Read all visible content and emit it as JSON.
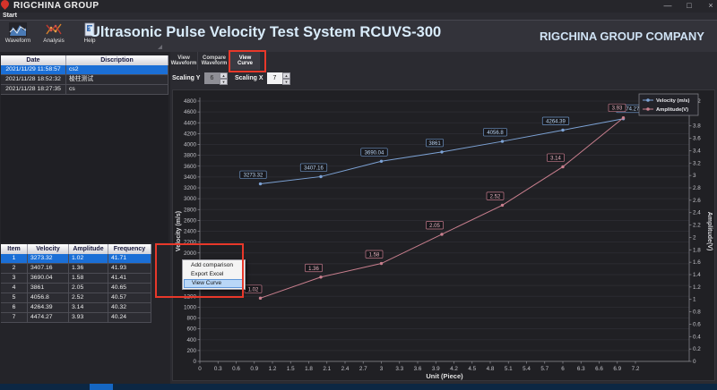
{
  "titlebar": {
    "app_title": "RIGCHINA GROUP",
    "controls": {
      "minimize": "—",
      "restore": "□",
      "close": "×"
    }
  },
  "menubar": {
    "start": "Start"
  },
  "toolbar": {
    "buttons": [
      {
        "label": "Waveform",
        "icon": "waveform-chart-icon"
      },
      {
        "label": "Analysis",
        "icon": "analysis-scatter-icon"
      },
      {
        "label": "Help",
        "icon": "help-question-icon"
      }
    ]
  },
  "header": {
    "main_title": "Ultrasonic Pulse Velocity Test System RCUVS-300",
    "company": "RIGCHINA GROUP COMPANY"
  },
  "history_table": {
    "headers": [
      "Date",
      "Discription"
    ],
    "rows": [
      {
        "date": "2021/11/29 11:58:57",
        "description": "cs2",
        "selected": true
      },
      {
        "date": "2021/11/28 18:52:32",
        "description": "棱柱测试",
        "selected": false
      },
      {
        "date": "2021/11/28 18:27:35",
        "description": "cs",
        "selected": false
      }
    ]
  },
  "results_table": {
    "headers": [
      "Item",
      "Velocity",
      "Amplitude",
      "Frequency"
    ],
    "rows": [
      {
        "item": "1",
        "velocity": "3273.32",
        "amplitude": "1.02",
        "frequency": "41.71",
        "selected": true
      },
      {
        "item": "2",
        "velocity": "3407.16",
        "amplitude": "1.36",
        "frequency": "41.93",
        "selected": false
      },
      {
        "item": "3",
        "velocity": "3690.04",
        "amplitude": "1.58",
        "frequency": "41.41",
        "selected": false
      },
      {
        "item": "4",
        "velocity": "3861",
        "amplitude": "2.05",
        "frequency": "40.65",
        "selected": false
      },
      {
        "item": "5",
        "velocity": "4056.8",
        "amplitude": "2.52",
        "frequency": "40.57",
        "selected": false
      },
      {
        "item": "6",
        "velocity": "4264.39",
        "amplitude": "3.14",
        "frequency": "40.32",
        "selected": false
      },
      {
        "item": "7",
        "velocity": "4474.27",
        "amplitude": "3.93",
        "frequency": "40.24",
        "selected": false
      }
    ]
  },
  "tabs": [
    {
      "label": "View Waveform",
      "active": false
    },
    {
      "label": "Compare Waveform",
      "active": false
    },
    {
      "label": "View Curve",
      "active": true,
      "annotated": true
    }
  ],
  "scaling": {
    "y_label": "Scaling Y",
    "y_value": "6",
    "y_enabled": false,
    "x_label": "Scaling X",
    "x_value": "7",
    "x_enabled": true
  },
  "context_menu": {
    "items": [
      {
        "label": "Add comparison",
        "highlighted": false
      },
      {
        "label": "Export Excel",
        "highlighted": false
      },
      {
        "label": "View  Curve",
        "highlighted": true
      }
    ]
  },
  "chart_data": {
    "type": "line",
    "x": [
      1,
      2,
      3,
      4,
      5,
      6,
      7
    ],
    "series": [
      {
        "name": "Velocity (m/s)",
        "axis": "left",
        "color": "#7da3d6",
        "values": [
          3273.32,
          3407.16,
          3690.04,
          3861,
          4056.8,
          4264.39,
          4474.27
        ],
        "labels": [
          "3273.32",
          "3407.16",
          "3690.04",
          "3861",
          "4056.8",
          "4264.39",
          "4474.27"
        ]
      },
      {
        "name": "Amplitude(V)",
        "axis": "right",
        "color": "#c97f8e",
        "values": [
          1.02,
          1.36,
          1.58,
          2.05,
          2.52,
          3.14,
          3.93
        ],
        "labels": [
          "1.02",
          "1.36",
          "1.58",
          "2.05",
          "2.52",
          "3.14",
          "3.93"
        ]
      }
    ],
    "left_axis": {
      "title": "Velocity (m/s)",
      "min": 0,
      "max": 4800,
      "step": 200
    },
    "right_axis": {
      "title": "Amplitude(V)",
      "min": 0,
      "max": 4.2,
      "step": 0.2
    },
    "x_axis": {
      "title": "Unit (Piece)",
      "min": 0,
      "max": 7.2,
      "step": 0.3
    },
    "legend_position": "top-right",
    "grid": "horizontal"
  },
  "colors": {
    "annotation_red": "#e8382a",
    "selection_blue": "#1b6fd6",
    "velocity_series": "#7da3d6",
    "amplitude_series": "#c97f8e",
    "chart_background": "#202024"
  }
}
